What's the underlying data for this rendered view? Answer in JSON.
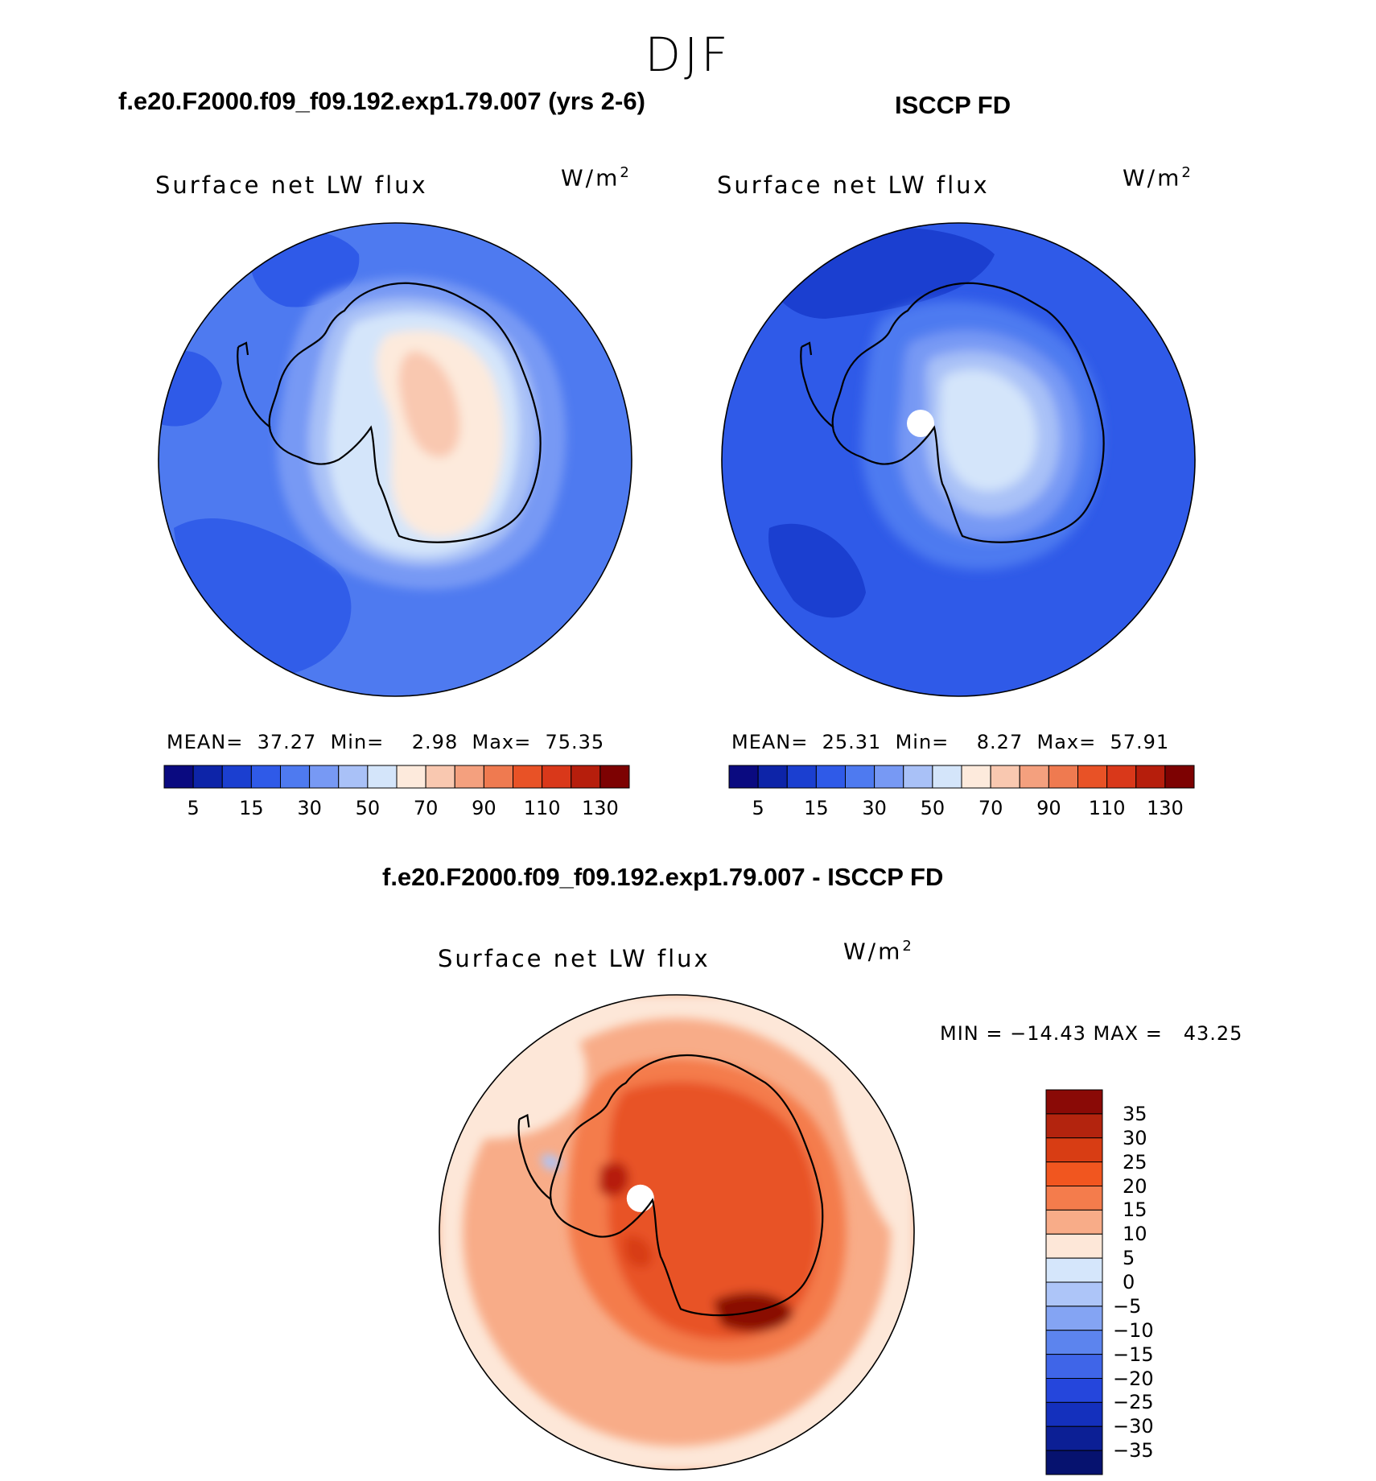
{
  "figure": {
    "season": "DJF",
    "panels": [
      {
        "id": "model",
        "title": "f.e20.F2000.f09_f09.192.exp1.79.007 (yrs 2-6)",
        "variable": "Surface net LW flux",
        "units": "W/m",
        "units_exp": "2",
        "stats_text": "MEAN=  37.27  Min=    2.98  Max=  75.35"
      },
      {
        "id": "obs",
        "title": "ISCCP FD",
        "variable": "Surface net LW flux",
        "units": "W/m",
        "units_exp": "2",
        "stats_text": "MEAN=  25.31  Min=    8.27  Max=  57.91"
      },
      {
        "id": "diff",
        "title": "f.e20.F2000.f09_f09.192.exp1.79.007 - ISCCP FD",
        "variable": "Surface net LW flux",
        "units": "W/m",
        "units_exp": "2",
        "stats_text": "MIN = −14.43 MAX =   43.25"
      }
    ],
    "field_colorbar": {
      "colors": [
        "#0a0a80",
        "#0d24a8",
        "#1b3fd0",
        "#2f5ae8",
        "#4e7af0",
        "#7799f4",
        "#a9c1f7",
        "#d4e5fa",
        "#fdeadc",
        "#f9c8b0",
        "#f4a07e",
        "#ef7a50",
        "#e85226",
        "#d9381a",
        "#b61e0c",
        "#7d0202"
      ],
      "labels": [
        "5",
        "15",
        "30",
        "50",
        "70",
        "90",
        "110",
        "130"
      ]
    },
    "diff_colorbar": {
      "colors_top_to_bottom": [
        "#8a0a06",
        "#b3240e",
        "#d83d14",
        "#f1561f",
        "#f47c4c",
        "#f8ac88",
        "#fde7d8",
        "#d5e6fb",
        "#adc5f8",
        "#84a4f3",
        "#5c84ee",
        "#3f65e8",
        "#2546dc",
        "#1430bd",
        "#0c1f95",
        "#06126f"
      ],
      "labels_top_to_bottom": [
        "35",
        "30",
        "25",
        "20",
        "15",
        "10",
        "5",
        "0",
        "−5",
        "−10",
        "−15",
        "−20",
        "−25",
        "−30",
        "−35"
      ]
    }
  }
}
